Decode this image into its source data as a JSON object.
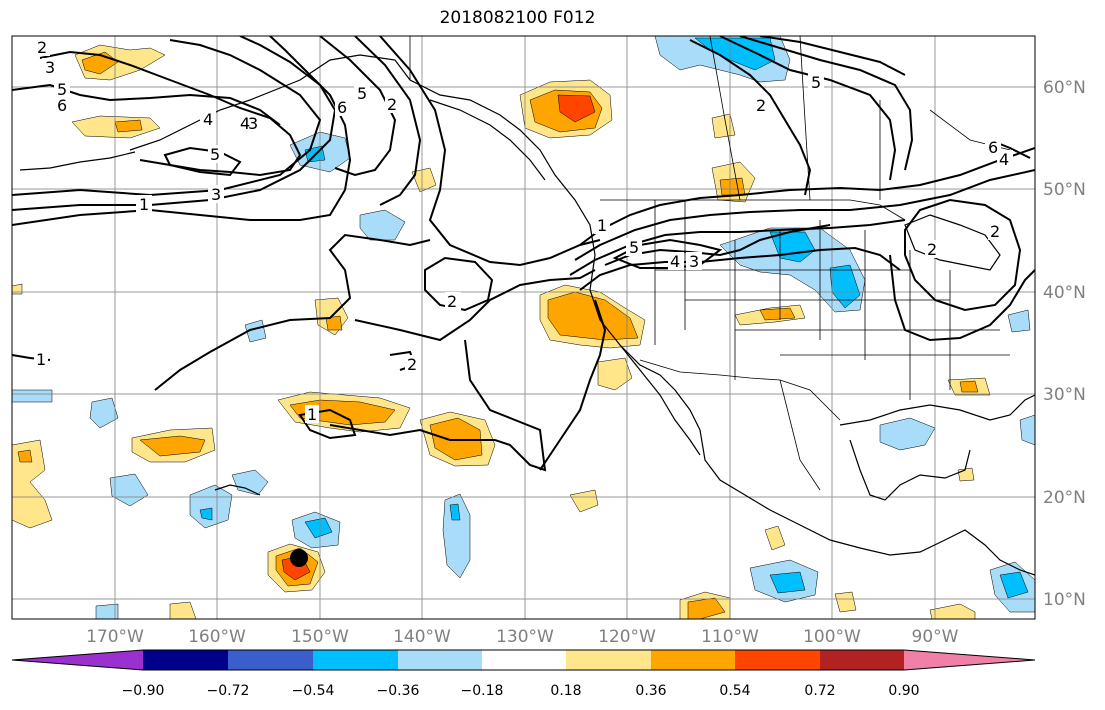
{
  "title": "2018082100 F012",
  "map": {
    "lon_ticks": [
      "170°W",
      "160°W",
      "150°W",
      "140°W",
      "130°W",
      "120°W",
      "110°W",
      "100°W",
      "90°W"
    ],
    "lat_ticks": [
      "60°N",
      "50°N",
      "40°N",
      "30°N",
      "20°N",
      "10°N"
    ],
    "contour_labels": [
      "2",
      "3",
      "5",
      "6",
      "1",
      "4",
      "3",
      "4",
      "5",
      "6",
      "2",
      "5",
      "3",
      "1",
      "2",
      "2",
      "5",
      "2",
      "6",
      "4",
      "1",
      "5",
      "4",
      "3",
      "2",
      "2",
      "1"
    ]
  },
  "colorbar": {
    "labels": [
      "−0.90",
      "−0.72",
      "−0.54",
      "−0.36",
      "−0.18",
      "0.18",
      "0.36",
      "0.54",
      "0.72",
      "0.90"
    ],
    "colors": [
      "#9b30d0",
      "#00008b",
      "#3a5fcd",
      "#00bfff",
      "#a8dcf8",
      "#ffffff",
      "#ffe68a",
      "#ffa500",
      "#ff4500",
      "#b22222",
      "#f080a8"
    ]
  }
}
